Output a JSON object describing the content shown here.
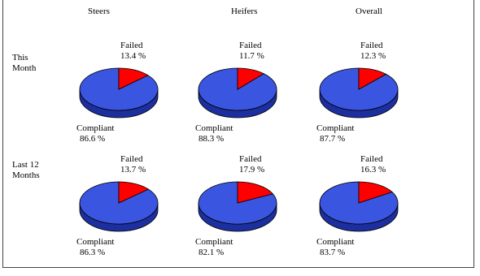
{
  "chart_data": {
    "type": "pie",
    "columns": [
      "Steers",
      "Heifers",
      "Overall"
    ],
    "rows": [
      "This Month",
      "Last 12 Months"
    ],
    "slice_labels": {
      "failed": "Failed",
      "compliant": "Compliant"
    },
    "colors": {
      "compliant": "#3a55e0",
      "compliant_side": "#1c2f9e",
      "failed": "#ff0000",
      "failed_side": "#a00000"
    },
    "charts": [
      {
        "row": 0,
        "col": 0,
        "failed_label": "Failed",
        "failed_value": "13.4 %",
        "failed": 13.4,
        "compliant_label": "Compliant",
        "compliant_value": "86.6 %",
        "compliant": 86.6
      },
      {
        "row": 0,
        "col": 1,
        "failed_label": "Failed",
        "failed_value": "11.7 %",
        "failed": 11.7,
        "compliant_label": "Compliant",
        "compliant_value": "88.3 %",
        "compliant": 88.3
      },
      {
        "row": 0,
        "col": 2,
        "failed_label": "Failed",
        "failed_value": "12.3 %",
        "failed": 12.3,
        "compliant_label": "Compliant",
        "compliant_value": "87.7 %",
        "compliant": 87.7
      },
      {
        "row": 1,
        "col": 0,
        "failed_label": "Failed",
        "failed_value": "13.7 %",
        "failed": 13.7,
        "compliant_label": "Compliant",
        "compliant_value": "86.3 %",
        "compliant": 86.3
      },
      {
        "row": 1,
        "col": 1,
        "failed_label": "Failed",
        "failed_value": "17.9 %",
        "failed": 17.9,
        "compliant_label": "Compliant",
        "compliant_value": "82.1 %",
        "compliant": 82.1
      },
      {
        "row": 1,
        "col": 2,
        "failed_label": "Failed",
        "failed_value": "16.3 %",
        "failed": 16.3,
        "compliant_label": "Compliant",
        "compliant_value": "83.7 %",
        "compliant": 83.7
      }
    ]
  }
}
